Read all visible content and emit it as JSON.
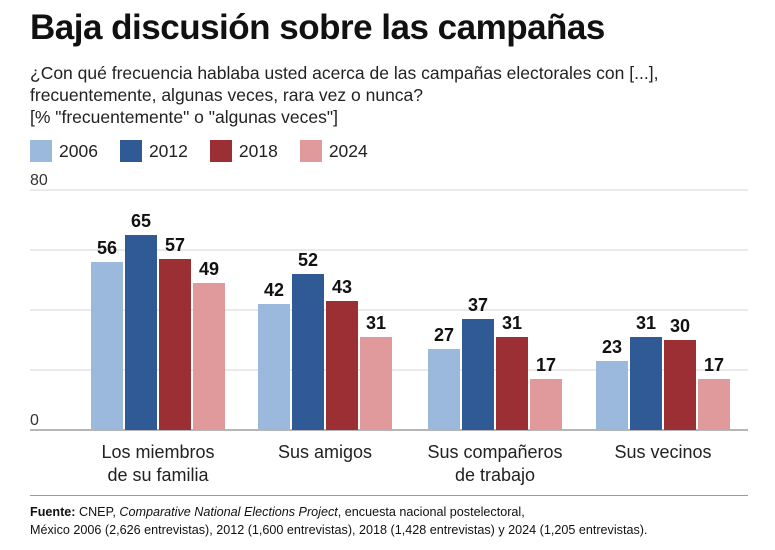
{
  "title": "Baja discusión sobre las campañas",
  "subtitle_line1": "¿Con qué frecuencia hablaba usted acerca de las campañas electorales con [...],",
  "subtitle_line2": "frecuentemente, algunas veces, rara vez o nunca?",
  "subtitle_line3": "[% \"frecuentemente\" o \"algunas veces\"]",
  "source": {
    "label": "Fuente:",
    "text1": " CNEP, ",
    "italic": "Comparative National Elections Project",
    "text2": ", encuesta nacional postelectoral,",
    "line2": "México 2006 (2,626 entrevistas), 2012 (1,600 entrevistas), 2018 (1,428 entrevistas) y 2024 (1,205 entrevistas)."
  },
  "chart_data": {
    "type": "bar",
    "categories": [
      [
        "Los miembros",
        "de su familia"
      ],
      [
        "Sus amigos"
      ],
      [
        "Sus compañeros",
        "de trabajo"
      ],
      [
        "Sus vecinos"
      ]
    ],
    "series": [
      {
        "name": "2006",
        "color": "#9bb9dc",
        "values": [
          56,
          42,
          27,
          23
        ]
      },
      {
        "name": "2012",
        "color": "#2f5a96",
        "values": [
          65,
          52,
          37,
          31
        ]
      },
      {
        "name": "2018",
        "color": "#9b2f34",
        "values": [
          57,
          43,
          31,
          30
        ]
      },
      {
        "name": "2024",
        "color": "#e09a9c",
        "values": [
          49,
          31,
          17,
          17
        ]
      }
    ],
    "ylim": [
      0,
      80
    ],
    "yticks": [
      0,
      80
    ],
    "gridlines": [
      0,
      20,
      40,
      60,
      80
    ],
    "grid": true,
    "legend_position": "top-left"
  }
}
